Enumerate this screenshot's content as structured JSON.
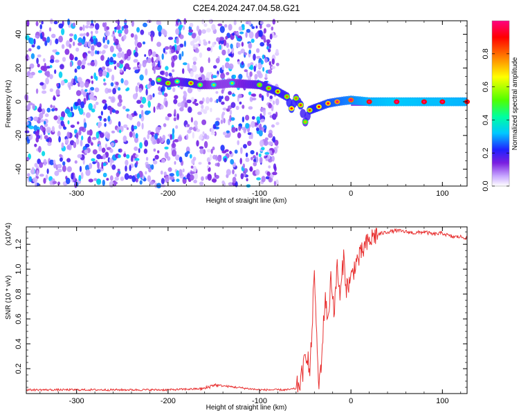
{
  "title": "C2E4.2024.247.04.58.G21",
  "chart_data": [
    {
      "type": "heatmap",
      "title": "C2E4.2024.247.04.58.G21",
      "xlabel": "Height of straight line (km)",
      "ylabel": "Frequency (Hz)",
      "xlim": [
        -355,
        127
      ],
      "ylim": [
        -50,
        48
      ],
      "x_ticks": [
        -300,
        -200,
        -100,
        0,
        100
      ],
      "y_ticks": [
        -40,
        -20,
        0,
        20,
        40
      ],
      "colorbar": {
        "label": "Normalized spectral amplitude",
        "range": [
          0,
          1
        ],
        "ticks": [
          0.0,
          0.2,
          0.4,
          0.6,
          0.8
        ],
        "colors": [
          "#ffffff",
          "#c8a8ff",
          "#7a1fe0",
          "#2020ff",
          "#00c8ff",
          "#00ffa0",
          "#50ff00",
          "#ffff00",
          "#ff8000",
          "#ff0000",
          "#ff0080"
        ]
      },
      "noise_region": {
        "x_range": [
          -355,
          -80
        ],
        "amplitude": [
          0.05,
          0.35
        ]
      },
      "ridge": [
        {
          "x": -210,
          "freq": 13,
          "amp": 0.45
        },
        {
          "x": -200,
          "freq": 11,
          "amp": 0.55
        },
        {
          "x": -190,
          "freq": 12,
          "amp": 0.4
        },
        {
          "x": -175,
          "freq": 11,
          "amp": 0.6
        },
        {
          "x": -165,
          "freq": 10,
          "amp": 0.45
        },
        {
          "x": -150,
          "freq": 10,
          "amp": 0.35
        },
        {
          "x": -130,
          "freq": 11,
          "amp": 0.35
        },
        {
          "x": -100,
          "freq": 10,
          "amp": 0.5
        },
        {
          "x": -90,
          "freq": 8,
          "amp": 0.55
        },
        {
          "x": -80,
          "freq": 6,
          "amp": 0.6
        },
        {
          "x": -70,
          "freq": 3,
          "amp": 0.55
        },
        {
          "x": -65,
          "freq": -4,
          "amp": 0.65
        },
        {
          "x": -60,
          "freq": 2,
          "amp": 0.55
        },
        {
          "x": -55,
          "freq": -2,
          "amp": 0.6
        },
        {
          "x": -50,
          "freq": -12,
          "amp": 0.5
        },
        {
          "x": -45,
          "freq": -5,
          "amp": 0.6
        },
        {
          "x": -35,
          "freq": -3,
          "amp": 0.65
        },
        {
          "x": -25,
          "freq": -1,
          "amp": 0.7
        },
        {
          "x": -15,
          "freq": 0,
          "amp": 0.75
        },
        {
          "x": 0,
          "freq": 1,
          "amp": 0.8
        },
        {
          "x": 20,
          "freq": 0,
          "amp": 0.88
        },
        {
          "x": 50,
          "freq": 0,
          "amp": 0.92
        },
        {
          "x": 80,
          "freq": 0,
          "amp": 0.9
        },
        {
          "x": 100,
          "freq": 0,
          "amp": 0.9
        },
        {
          "x": 127,
          "freq": 0,
          "amp": 0.88
        }
      ]
    },
    {
      "type": "line",
      "xlabel": "Height of straight line (km)",
      "ylabel": "SNR (10 * v/v)",
      "y_multiplier": "(x10^4)",
      "xlim": [
        -355,
        127
      ],
      "ylim": [
        0,
        1.34
      ],
      "x_ticks": [
        -300,
        -200,
        -100,
        0,
        100
      ],
      "y_ticks": [
        0.2,
        0.4,
        0.6,
        0.8,
        1.0,
        1.2
      ],
      "color": "#e83030",
      "series": [
        {
          "x": [
            -355,
            -300,
            -250,
            -200,
            -160,
            -150,
            -100,
            -70,
            -60,
            -55,
            -52,
            -48,
            -45,
            -42,
            -40,
            -38,
            -35,
            -32,
            -28,
            -25,
            -22,
            -18,
            -15,
            -12,
            -8,
            -5,
            0,
            5,
            10,
            15,
            20,
            25,
            30,
            40,
            50,
            60,
            70,
            80,
            90,
            100,
            110,
            120,
            127
          ],
          "y": [
            0.03,
            0.03,
            0.03,
            0.03,
            0.04,
            0.07,
            0.03,
            0.03,
            0.04,
            0.1,
            0.2,
            0.35,
            0.15,
            0.6,
            1.05,
            0.5,
            0.05,
            0.3,
            0.8,
            0.55,
            0.95,
            0.65,
            1.05,
            0.75,
            1.1,
            0.85,
            0.92,
            1.05,
            1.1,
            1.18,
            1.22,
            1.27,
            1.28,
            1.3,
            1.31,
            1.3,
            1.29,
            1.3,
            1.28,
            1.29,
            1.26,
            1.26,
            1.25
          ]
        }
      ]
    }
  ]
}
